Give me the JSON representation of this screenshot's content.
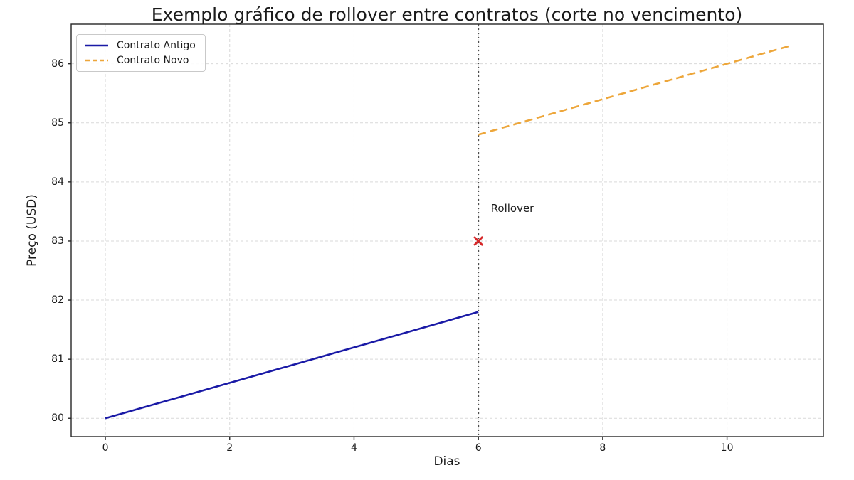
{
  "chart_data": {
    "type": "line",
    "title": "Exemplo gráfico de rollover entre contratos (corte no vencimento)",
    "xlabel": "Dias",
    "ylabel": "Preço (USD)",
    "xlim": [
      -0.55,
      11.55
    ],
    "ylim": [
      79.69,
      86.67
    ],
    "xticks": [
      0,
      2,
      4,
      6,
      8,
      10
    ],
    "yticks": [
      80,
      81,
      82,
      83,
      84,
      85,
      86
    ],
    "grid": true,
    "legend_position": "upper-left",
    "series": [
      {
        "name": "Contrato Antigo",
        "color": "#1a1aa6",
        "style": "solid",
        "x": [
          0,
          1,
          2,
          3,
          4,
          5,
          6
        ],
        "y": [
          80.0,
          80.3,
          80.6,
          80.9,
          81.2,
          81.5,
          81.8
        ]
      },
      {
        "name": "Contrato Novo",
        "color": "#eda63a",
        "style": "dashed",
        "x": [
          6,
          7,
          8,
          9,
          10,
          11
        ],
        "y": [
          84.8,
          85.1,
          85.4,
          85.7,
          86.0,
          86.3
        ]
      }
    ],
    "vline": {
      "x": 6,
      "color": "#4d4d4d",
      "style": "dotted"
    },
    "marker": {
      "x": 6,
      "y": 83,
      "symbol": "x",
      "color": "#d62728"
    },
    "annotation": {
      "text": "Rollover",
      "x": 6.2,
      "y": 83.55
    }
  }
}
